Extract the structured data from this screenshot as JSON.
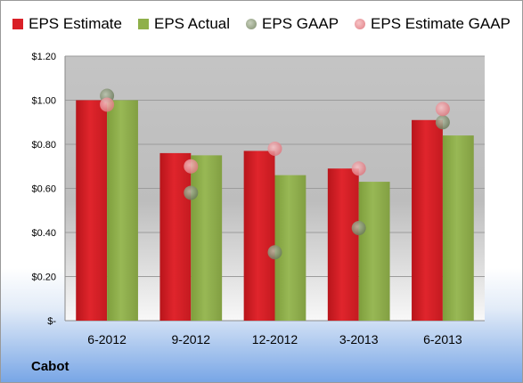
{
  "company": "Cabot",
  "chart_data": {
    "type": "bar",
    "categories": [
      "6-2012",
      "9-2012",
      "12-2012",
      "3-2013",
      "6-2013"
    ],
    "series": [
      {
        "name": "EPS Estimate",
        "kind": "bar",
        "color": "#d92027",
        "values": [
          1.0,
          0.76,
          0.77,
          0.69,
          0.91
        ]
      },
      {
        "name": "EPS Actual",
        "kind": "bar",
        "color": "#8fb04a",
        "values": [
          1.0,
          0.75,
          0.66,
          0.63,
          0.84
        ]
      },
      {
        "name": "EPS GAAP",
        "kind": "dot",
        "color": "#8e9c7c",
        "values": [
          1.02,
          0.58,
          0.31,
          0.42,
          0.9
        ]
      },
      {
        "name": "EPS Estimate GAAP",
        "kind": "dot",
        "color": "#e8868c",
        "values": [
          0.98,
          0.7,
          0.78,
          0.69,
          0.96
        ]
      }
    ],
    "yticks": [
      "$-",
      "$0.20",
      "$0.40",
      "$0.60",
      "$0.80",
      "$1.00",
      "$1.20"
    ],
    "ylim": [
      0,
      1.2
    ],
    "grid": true,
    "legend_position": "top"
  }
}
